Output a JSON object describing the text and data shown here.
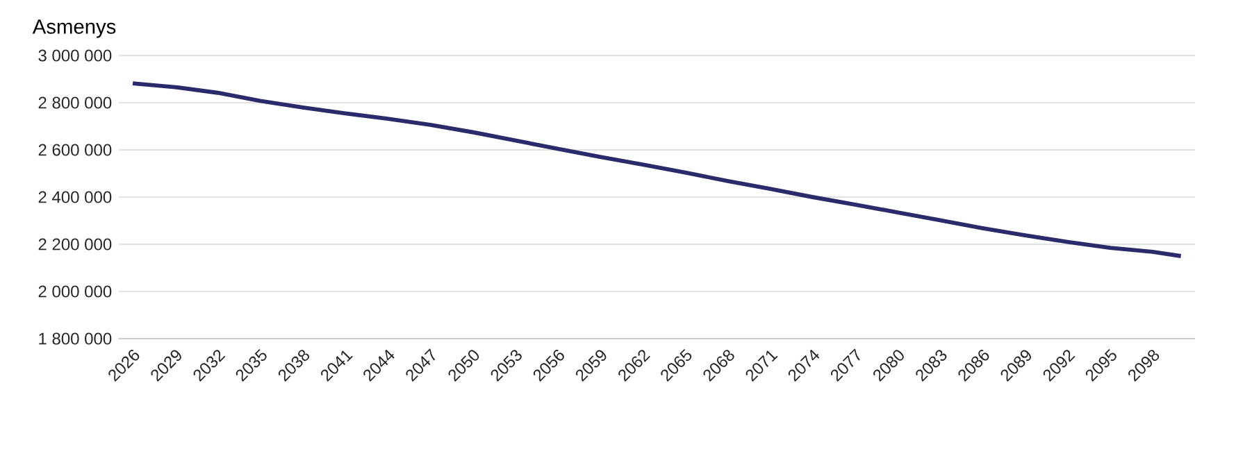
{
  "chart_data": {
    "type": "line",
    "ylabel": "Asmenys",
    "x": [
      2026,
      2029,
      2032,
      2035,
      2038,
      2041,
      2044,
      2047,
      2050,
      2053,
      2056,
      2059,
      2062,
      2065,
      2068,
      2071,
      2074,
      2077,
      2080,
      2083,
      2086,
      2089,
      2092,
      2095,
      2098,
      2100
    ],
    "values": [
      2882000,
      2866000,
      2842000,
      2808000,
      2780000,
      2755000,
      2732000,
      2706000,
      2675000,
      2640000,
      2605000,
      2570000,
      2538000,
      2504000,
      2468000,
      2435000,
      2400000,
      2368000,
      2335000,
      2302000,
      2268000,
      2238000,
      2210000,
      2185000,
      2168000,
      2150000
    ],
    "color": "#2b2a6b",
    "line_style": "solid",
    "marker": "none",
    "xlim": [
      2025,
      2101
    ],
    "ylim": [
      1800000,
      3000000
    ],
    "xticks": [
      2026,
      2029,
      2032,
      2035,
      2038,
      2041,
      2044,
      2047,
      2050,
      2053,
      2056,
      2059,
      2062,
      2065,
      2068,
      2071,
      2074,
      2077,
      2080,
      2083,
      2086,
      2089,
      2092,
      2095,
      2098
    ],
    "yticks": [
      {
        "value": 1800000,
        "label": "1 800 000"
      },
      {
        "value": 2000000,
        "label": "2 000 000"
      },
      {
        "value": 2200000,
        "label": "2 200 000"
      },
      {
        "value": 2400000,
        "label": "2 400 000"
      },
      {
        "value": 2600000,
        "label": "2 600 000"
      },
      {
        "value": 2800000,
        "label": "2 800 000"
      },
      {
        "value": 3000000,
        "label": "3 000 000"
      }
    ],
    "grid": "y"
  }
}
